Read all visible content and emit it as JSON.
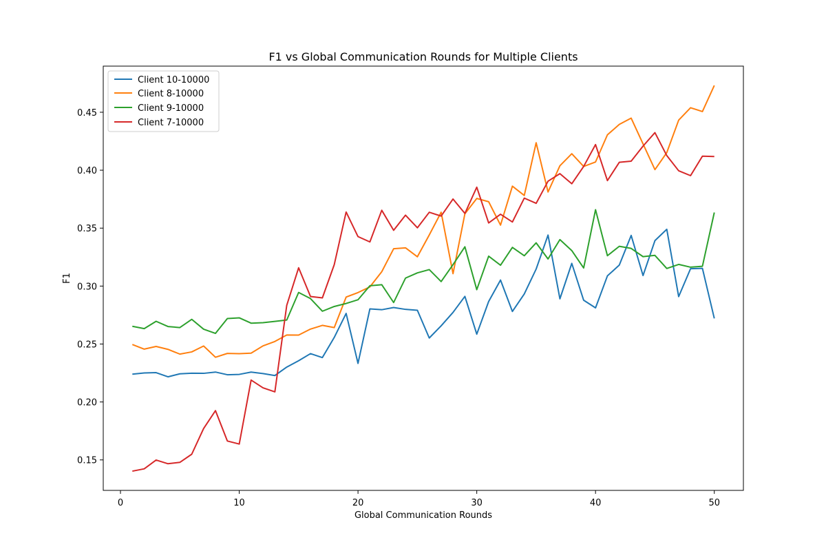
{
  "chart_data": {
    "type": "line",
    "title": "F1 vs Global Communication Rounds for Multiple Clients",
    "xlabel": "Global Communication Rounds",
    "ylabel": "F1",
    "xlim": [
      -1.45,
      52.45
    ],
    "ylim": [
      0.1237,
      0.4898
    ],
    "xticks": [
      0,
      10,
      20,
      30,
      40,
      50
    ],
    "yticks": [
      0.15,
      0.2,
      0.25,
      0.3,
      0.35,
      0.4,
      0.45
    ],
    "ytick_labels": [
      "0.15",
      "0.20",
      "0.25",
      "0.30",
      "0.35",
      "0.40",
      "0.45"
    ],
    "grid": false,
    "legend_position": "top-left",
    "x": [
      1,
      2,
      3,
      4,
      5,
      6,
      7,
      8,
      9,
      10,
      11,
      12,
      13,
      14,
      15,
      16,
      17,
      18,
      19,
      20,
      21,
      22,
      23,
      24,
      25,
      26,
      27,
      28,
      29,
      30,
      31,
      32,
      33,
      34,
      35,
      36,
      37,
      38,
      39,
      40,
      41,
      42,
      43,
      44,
      45,
      46,
      47,
      48,
      49,
      50
    ],
    "series": [
      {
        "name": "Client 10-10000",
        "color": "#1f77b4",
        "values": [
          0.224,
          0.225,
          0.2253,
          0.2217,
          0.2243,
          0.2248,
          0.2247,
          0.2258,
          0.2235,
          0.2238,
          0.2258,
          0.2245,
          0.2228,
          0.2301,
          0.2356,
          0.2417,
          0.2383,
          0.2557,
          0.2764,
          0.2333,
          0.2803,
          0.2796,
          0.2815,
          0.2799,
          0.2791,
          0.2552,
          0.2657,
          0.2773,
          0.2911,
          0.2585,
          0.2867,
          0.3052,
          0.2781,
          0.2932,
          0.3147,
          0.344,
          0.289,
          0.3196,
          0.2878,
          0.2812,
          0.3088,
          0.3181,
          0.3437,
          0.3091,
          0.3392,
          0.349,
          0.2909,
          0.315,
          0.3153,
          0.2721
        ]
      },
      {
        "name": "Client 8-10000",
        "color": "#ff7f0e",
        "values": [
          0.2496,
          0.2456,
          0.2479,
          0.2454,
          0.2413,
          0.2432,
          0.2483,
          0.2386,
          0.2419,
          0.2417,
          0.2421,
          0.2484,
          0.2522,
          0.2578,
          0.2577,
          0.2629,
          0.2661,
          0.2642,
          0.2905,
          0.2944,
          0.2993,
          0.3124,
          0.3322,
          0.333,
          0.3253,
          0.3441,
          0.3637,
          0.3107,
          0.3624,
          0.3756,
          0.3728,
          0.3526,
          0.3862,
          0.3782,
          0.4237,
          0.3812,
          0.4038,
          0.4142,
          0.4032,
          0.4071,
          0.4305,
          0.4395,
          0.4449,
          0.4227,
          0.4005,
          0.4152,
          0.4432,
          0.4539,
          0.4506,
          0.4731
        ]
      },
      {
        "name": "Client 9-10000",
        "color": "#2ca02c",
        "values": [
          0.2653,
          0.2633,
          0.2696,
          0.2651,
          0.2642,
          0.2713,
          0.2628,
          0.2592,
          0.272,
          0.2726,
          0.268,
          0.2684,
          0.2695,
          0.2707,
          0.2945,
          0.2892,
          0.2783,
          0.2824,
          0.285,
          0.2882,
          0.3003,
          0.3012,
          0.2858,
          0.3069,
          0.3114,
          0.3142,
          0.3039,
          0.3185,
          0.3339,
          0.2969,
          0.3258,
          0.318,
          0.3334,
          0.3262,
          0.3373,
          0.3234,
          0.3401,
          0.3306,
          0.3156,
          0.3659,
          0.3262,
          0.3343,
          0.3325,
          0.3254,
          0.3265,
          0.3152,
          0.3187,
          0.3163,
          0.3171,
          0.3635
        ]
      },
      {
        "name": "Client 7-10000",
        "color": "#d62728",
        "values": [
          0.1403,
          0.1423,
          0.1499,
          0.1467,
          0.1479,
          0.1549,
          0.1771,
          0.1925,
          0.1663,
          0.1637,
          0.2189,
          0.2122,
          0.2087,
          0.2834,
          0.3158,
          0.291,
          0.2898,
          0.3185,
          0.3639,
          0.3427,
          0.3381,
          0.3654,
          0.3481,
          0.3612,
          0.3503,
          0.3637,
          0.3604,
          0.3751,
          0.3627,
          0.3853,
          0.3545,
          0.362,
          0.3553,
          0.3759,
          0.3714,
          0.3905,
          0.397,
          0.3883,
          0.4032,
          0.4221,
          0.391,
          0.4068,
          0.4078,
          0.4208,
          0.4324,
          0.4126,
          0.3995,
          0.3953,
          0.4121,
          0.4118
        ]
      }
    ]
  }
}
